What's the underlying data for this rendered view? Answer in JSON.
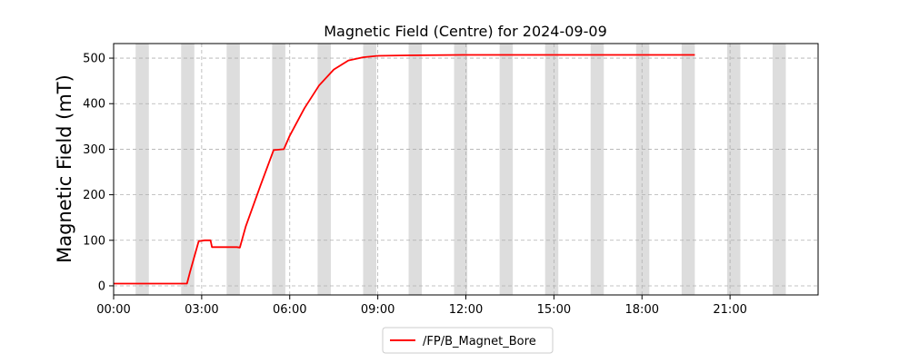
{
  "chart_data": {
    "type": "line",
    "title": "Magnetic Field (Centre) for 2024-09-09",
    "xlabel": "",
    "ylabel": "Magnetic Field (mT)",
    "x_range_hours": [
      0,
      24
    ],
    "x_ticks": [
      "00:00",
      "03:00",
      "06:00",
      "09:00",
      "12:00",
      "15:00",
      "18:00",
      "21:00"
    ],
    "ylim": [
      -20,
      532
    ],
    "y_ticks": [
      0,
      100,
      200,
      300,
      400,
      500
    ],
    "grid": true,
    "legend_position": "bottom-center",
    "shaded_bands_hours": [
      [
        0.75,
        1.2
      ],
      [
        2.3,
        2.75
      ],
      [
        3.85,
        4.3
      ],
      [
        5.4,
        5.85
      ],
      [
        6.95,
        7.4
      ],
      [
        8.5,
        8.95
      ],
      [
        10.05,
        10.5
      ],
      [
        11.6,
        12.05
      ],
      [
        13.15,
        13.6
      ],
      [
        14.7,
        15.15
      ],
      [
        16.25,
        16.7
      ],
      [
        17.8,
        18.25
      ],
      [
        19.35,
        19.8
      ],
      [
        20.9,
        21.35
      ],
      [
        22.45,
        22.9
      ]
    ],
    "series": [
      {
        "name": "/FP/B_Magnet_Bore",
        "color": "#ff0000",
        "points": [
          [
            0.0,
            5
          ],
          [
            2.5,
            5
          ],
          [
            2.6,
            30
          ],
          [
            2.9,
            98
          ],
          [
            3.1,
            100
          ],
          [
            3.3,
            100
          ],
          [
            3.35,
            85
          ],
          [
            4.2,
            85
          ],
          [
            4.3,
            84
          ],
          [
            4.5,
            130
          ],
          [
            5.0,
            220
          ],
          [
            5.45,
            298
          ],
          [
            5.8,
            300
          ],
          [
            6.0,
            330
          ],
          [
            6.5,
            390
          ],
          [
            7.0,
            440
          ],
          [
            7.5,
            475
          ],
          [
            8.0,
            495
          ],
          [
            8.5,
            502
          ],
          [
            9.0,
            505
          ],
          [
            10.0,
            506
          ],
          [
            12.0,
            507
          ],
          [
            15.0,
            507
          ],
          [
            18.0,
            507
          ],
          [
            19.8,
            507
          ]
        ]
      }
    ]
  },
  "colors": {
    "band": "#dddddd",
    "grid": "#b0b0b0",
    "axis": "#000000"
  }
}
